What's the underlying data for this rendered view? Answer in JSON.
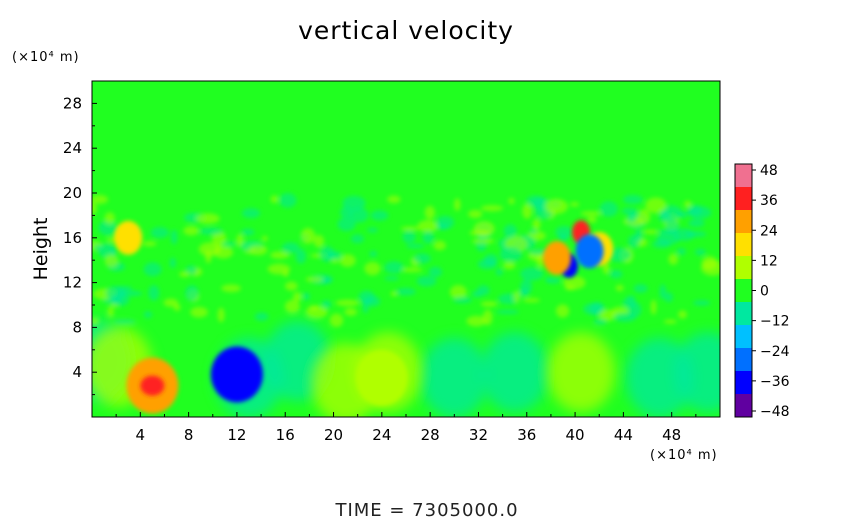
{
  "chart_data": {
    "type": "heatmap",
    "title": "vertical velocity",
    "ylabel": "Height",
    "y_unit": "(×10⁴ m)",
    "x_unit": "(×10⁴ m)",
    "xlim": [
      0,
      52
    ],
    "ylim": [
      0,
      30
    ],
    "x_ticks": [
      "4",
      "8",
      "12",
      "16",
      "20",
      "24",
      "28",
      "32",
      "36",
      "40",
      "44",
      "48"
    ],
    "y_ticks": [
      "28",
      "24",
      "20",
      "16",
      "12",
      "8",
      "4"
    ],
    "colorbar": {
      "range": [
        -48,
        48
      ],
      "tick_labels": [
        "48",
        "36",
        "24",
        "12",
        "0",
        "−12",
        "−24",
        "−36",
        "−48"
      ],
      "colors": [
        "#f07090",
        "#ff2020",
        "#ffa000",
        "#ffe000",
        "#b0ff00",
        "#20ff20",
        "#00e8a0",
        "#00c0ff",
        "#0070ff",
        "#0000ff",
        "#6000a0"
      ]
    },
    "features": [
      {
        "x": 5,
        "y": 2.8,
        "value": 26
      },
      {
        "x": 12,
        "y": 3.8,
        "value": -34
      },
      {
        "x": 3,
        "y": 16,
        "value": 22
      },
      {
        "x": 24,
        "y": 3.5,
        "value": 10
      },
      {
        "x": 39.5,
        "y": 13.5,
        "value": -42
      },
      {
        "x": 38.5,
        "y": 14.2,
        "value": 30
      },
      {
        "x": 40.5,
        "y": 16.5,
        "value": 34
      },
      {
        "x": 42,
        "y": 15,
        "value": 18
      },
      {
        "x": 41.2,
        "y": 14.8,
        "value": -30
      }
    ],
    "grid": false
  },
  "footer": {
    "time_label": "TIME  =  7305000.0"
  }
}
